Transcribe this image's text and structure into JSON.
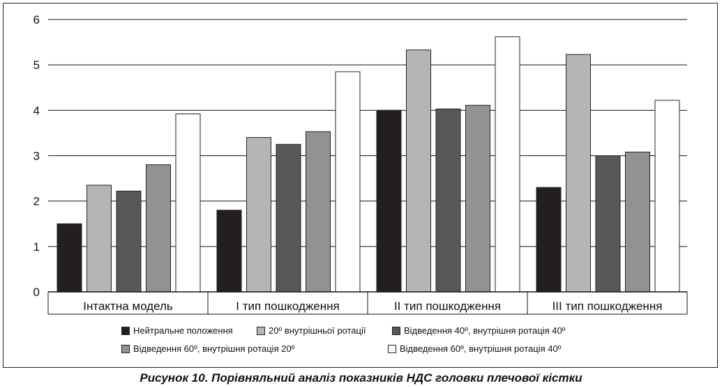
{
  "chart_data": {
    "type": "bar",
    "categories": [
      "Інтактна модель",
      "І тип пошкодження",
      "ІІ тип пошкодження",
      "ІІІ тип пошкодження"
    ],
    "series": [
      {
        "name": "Нейтральне положення",
        "color": "#231f20",
        "values": [
          1.5,
          1.8,
          4.0,
          2.3
        ]
      },
      {
        "name": "20º внутрішньої ротації",
        "color": "#b5b5b8",
        "values": [
          2.35,
          3.4,
          5.33,
          5.23
        ]
      },
      {
        "name": "Відведення 40º, внутрішня ротація 40º",
        "color": "#58585a",
        "values": [
          2.22,
          3.25,
          4.03,
          3.0
        ]
      },
      {
        "name": "Відведення 60º, внутрішня ротація 20º",
        "color": "#929294",
        "values": [
          2.8,
          3.53,
          4.11,
          3.08
        ]
      },
      {
        "name": "Відведення 60º, внутрішня ротація 40º",
        "color": "#ffffff",
        "values": [
          3.92,
          4.85,
          5.62,
          4.22
        ]
      }
    ],
    "yticks": [
      "0",
      "1",
      "2",
      "3",
      "4",
      "5",
      "6"
    ],
    "ylim": [
      0,
      6
    ],
    "grid": true,
    "legend": "bottom"
  },
  "caption": "Рисунок 10. Порівняльний аналіз показників НДС головки плечової кістки"
}
